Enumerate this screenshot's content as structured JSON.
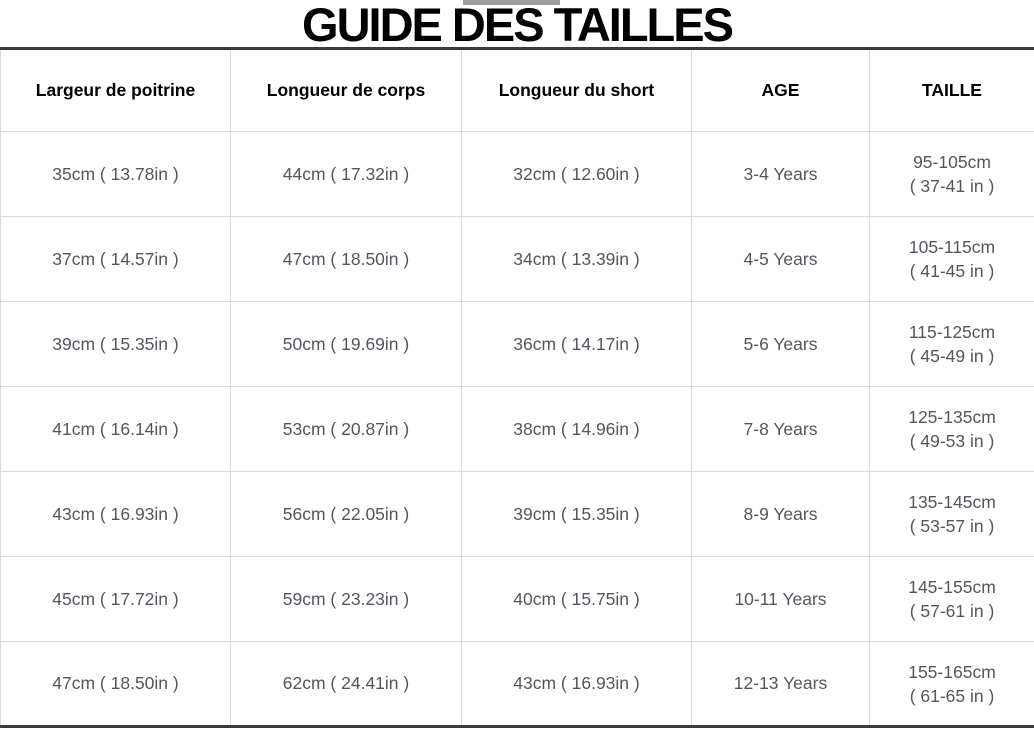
{
  "title": "GUIDE DES TAILLES",
  "table": {
    "columns": [
      "Largeur de poitrine",
      "Longueur de corps",
      "Longueur du short",
      "AGE",
      "TAILLE"
    ],
    "rows": [
      {
        "chest": "35cm ( 13.78in )",
        "body": "44cm ( 17.32in )",
        "short": "32cm ( 12.60in )",
        "age": "3-4 Years",
        "size_cm": "95-105cm",
        "size_in": "( 37-41 in )"
      },
      {
        "chest": "37cm ( 14.57in )",
        "body": "47cm ( 18.50in )",
        "short": "34cm ( 13.39in )",
        "age": "4-5 Years",
        "size_cm": "105-115cm",
        "size_in": "( 41-45 in )"
      },
      {
        "chest": "39cm ( 15.35in )",
        "body": "50cm ( 19.69in )",
        "short": "36cm ( 14.17in )",
        "age": "5-6 Years",
        "size_cm": "115-125cm",
        "size_in": "( 45-49 in )"
      },
      {
        "chest": "41cm ( 16.14in )",
        "body": "53cm ( 20.87in )",
        "short": "38cm ( 14.96in )",
        "age": "7-8 Years",
        "size_cm": "125-135cm",
        "size_in": "( 49-53 in )"
      },
      {
        "chest": "43cm ( 16.93in )",
        "body": "56cm ( 22.05in )",
        "short": "39cm ( 15.35in )",
        "age": "8-9 Years",
        "size_cm": "135-145cm",
        "size_in": "( 53-57 in )"
      },
      {
        "chest": "45cm ( 17.72in )",
        "body": "59cm ( 23.23in )",
        "short": "40cm ( 15.75in )",
        "age": "10-11 Years",
        "size_cm": "145-155cm",
        "size_in": "( 57-61 in )"
      },
      {
        "chest": "47cm ( 18.50in )",
        "body": "62cm ( 24.41in )",
        "short": "43cm ( 16.93in )",
        "age": "12-13 Years",
        "size_cm": "155-165cm",
        "size_in": "( 61-65 in )"
      }
    ]
  },
  "colors": {
    "background": "#ffffff",
    "title_text": "#000000",
    "header_text": "#000000",
    "body_text": "#53575d",
    "grid_line": "#d9d9d9",
    "outer_rule": "#3a3a3a"
  }
}
